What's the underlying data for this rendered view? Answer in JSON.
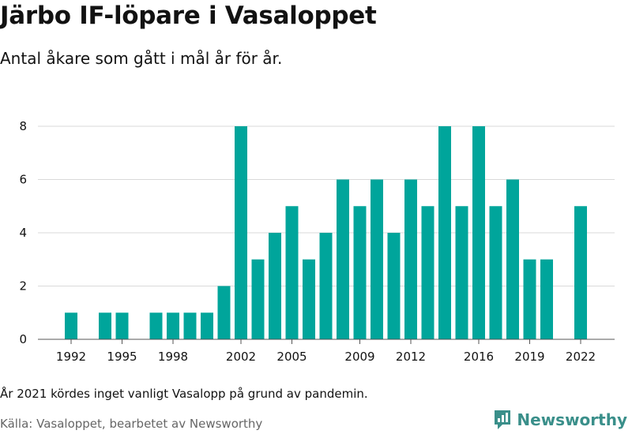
{
  "title": "Järbo IF-löpare i Vasaloppet",
  "subtitle": "Antal åkare som gått i mål år för år.",
  "note": "År 2021 kördes inget vanligt Vasalopp på grund av pandemin.",
  "source": "Källa: Vasaloppet, bearbetet av Newsworthy",
  "brand": {
    "name": "Newsworthy",
    "icon": "newsworthy-logo-icon",
    "color": "#3a8f8a"
  },
  "chart_data": {
    "type": "bar",
    "title": "Järbo IF-löpare i Vasaloppet",
    "subtitle": "Antal åkare som gått i mål år för år.",
    "xlabel": "",
    "ylabel": "",
    "x": [
      1992,
      1993,
      1994,
      1995,
      1996,
      1997,
      1998,
      1999,
      2000,
      2001,
      2002,
      2003,
      2004,
      2005,
      2006,
      2007,
      2008,
      2009,
      2010,
      2011,
      2012,
      2013,
      2014,
      2015,
      2016,
      2017,
      2018,
      2019,
      2020,
      2021,
      2022
    ],
    "values": [
      1,
      0,
      1,
      1,
      0,
      1,
      1,
      1,
      1,
      2,
      8,
      3,
      4,
      5,
      3,
      4,
      6,
      5,
      6,
      4,
      6,
      5,
      8,
      5,
      8,
      5,
      6,
      3,
      3,
      0,
      5
    ],
    "x_ticks": [
      1992,
      1995,
      1998,
      2002,
      2005,
      2009,
      2012,
      2016,
      2019,
      2022
    ],
    "y_ticks": [
      0,
      2,
      4,
      6,
      8
    ],
    "ylim": [
      0,
      8
    ],
    "grid": true,
    "bar_color": "#00a59b"
  }
}
